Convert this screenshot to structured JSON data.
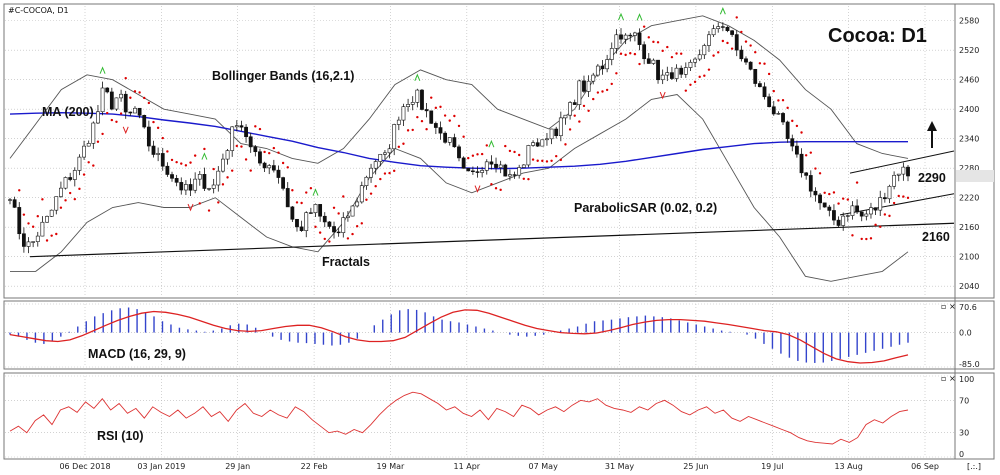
{
  "header": {
    "symbol": "#C-COCOA, D1",
    "title": "Cocoa: D1"
  },
  "annotations": {
    "bollinger": "Bollinger Bands (16,2.1)",
    "ma": "MA (200)",
    "fractals": "Fractals",
    "sar": "ParabolicSAR (0.02, 0.2)",
    "macd": "MACD (16, 29, 9)",
    "rsi": "RSI (10)"
  },
  "levels": {
    "resistance": "2290",
    "support": "2160"
  },
  "footer": {
    "scroll_glyph": "[.:.]"
  },
  "panel_controls": {
    "close_glyph": "×",
    "restore_glyph": "▫"
  },
  "colors": {
    "ma": "#1a1acc",
    "sar": "#dd0000",
    "fractal": "#33bb33",
    "fractal_down": "#dd2222",
    "macd_hist": "#3344cc",
    "macd_signal": "#dd2222",
    "rsi": "#dd3333",
    "candle": "#111111"
  },
  "chart_data": [
    {
      "type": "candlestick",
      "title": "Cocoa: D1",
      "y_ticks": [
        "2580",
        "2520",
        "2460",
        "2400",
        "2340",
        "2280",
        "2220",
        "2160",
        "2100",
        "2040"
      ],
      "ylim": [
        2020,
        2610
      ],
      "current_price": "2270",
      "x_ticks": [
        "06 Dec 2018",
        "03 Jan 2019",
        "29 Jan",
        "22 Feb",
        "19 Mar",
        "11 Apr",
        "07 May",
        "31 May",
        "25 Jun",
        "19 Jul",
        "13 Aug",
        "06 Sep"
      ],
      "n_bars": 195,
      "close_path": [
        2230,
        2160,
        2120,
        2130,
        2160,
        2180,
        2220,
        2250,
        2270,
        2300,
        2340,
        2380,
        2440,
        2410,
        2430,
        2380,
        2400,
        2360,
        2320,
        2300,
        2280,
        2260,
        2240,
        2230,
        2260,
        2250,
        2240,
        2290,
        2330,
        2380,
        2360,
        2310,
        2290,
        2290,
        2280,
        2240,
        2180,
        2150,
        2180,
        2200,
        2170,
        2160,
        2140,
        2180,
        2200,
        2240,
        2280,
        2300,
        2300,
        2350,
        2400,
        2420,
        2430,
        2400,
        2380,
        2350,
        2340,
        2310,
        2270,
        2260,
        2280,
        2300,
        2300,
        2280,
        2260,
        2270,
        2300,
        2340,
        2320,
        2360,
        2360,
        2380,
        2410,
        2450,
        2440,
        2480,
        2490,
        2530,
        2560,
        2540,
        2550,
        2520,
        2500,
        2470,
        2460,
        2480,
        2460,
        2480,
        2500,
        2540,
        2550,
        2580,
        2560,
        2520,
        2500,
        2470,
        2440,
        2420,
        2390,
        2360,
        2320,
        2290,
        2260,
        2230,
        2200,
        2180,
        2170,
        2190,
        2200,
        2180,
        2190,
        2200,
        2230,
        2260,
        2280,
        2270
      ],
      "bollinger": {
        "upper": [
          2300,
          2370,
          2440,
          2470,
          2460,
          2430,
          2400,
          2390,
          2380,
          2330,
          2320,
          2300,
          2290,
          2320,
          2380,
          2450,
          2480,
          2460,
          2450,
          2400,
          2380,
          2360,
          2400,
          2480,
          2540,
          2570,
          2580,
          2590,
          2570,
          2540,
          2500,
          2440,
          2400,
          2330,
          2310,
          2300
        ],
        "lower": [
          2070,
          2070,
          2110,
          2170,
          2200,
          2210,
          2200,
          2200,
          2220,
          2180,
          2140,
          2120,
          2110,
          2170,
          2260,
          2320,
          2300,
          2250,
          2230,
          2250,
          2270,
          2280,
          2320,
          2350,
          2380,
          2420,
          2430,
          2380,
          2290,
          2200,
          2140,
          2060,
          2050,
          2060,
          2070,
          2110
        ]
      },
      "ma200": [
        2390,
        2392,
        2393,
        2392,
        2390,
        2385,
        2378,
        2372,
        2365,
        2355,
        2345,
        2335,
        2322,
        2312,
        2300,
        2292,
        2285,
        2282,
        2280,
        2279,
        2280,
        2282,
        2284,
        2288,
        2294,
        2302,
        2310,
        2318,
        2324,
        2330,
        2333,
        2334,
        2334,
        2334,
        2334,
        2334
      ]
    },
    {
      "type": "bar",
      "title": "MACD (16, 29, 9)",
      "y_ticks": [
        "70.6",
        "0.0",
        "-85.0"
      ],
      "ylim": [
        -85,
        70.6
      ],
      "histogram": [
        -5,
        -10,
        -18,
        -25,
        -28,
        -20,
        -10,
        2,
        15,
        28,
        40,
        48,
        55,
        60,
        62,
        58,
        50,
        40,
        28,
        20,
        12,
        8,
        5,
        2,
        5,
        10,
        18,
        22,
        20,
        12,
        0,
        -10,
        -18,
        -22,
        -25,
        -26,
        -28,
        -30,
        -32,
        -30,
        -25,
        -15,
        0,
        18,
        32,
        45,
        55,
        58,
        56,
        50,
        40,
        32,
        28,
        25,
        20,
        15,
        10,
        5,
        0,
        -5,
        -8,
        -10,
        -8,
        -5,
        0,
        5,
        10,
        15,
        22,
        28,
        30,
        32,
        35,
        38,
        40,
        42,
        40,
        38,
        35,
        30,
        25,
        20,
        15,
        10,
        5,
        2,
        0,
        -5,
        -15,
        -28,
        -40,
        -52,
        -62,
        -70,
        -74,
        -75,
        -74,
        -70,
        -65,
        -60,
        -55,
        -50,
        -45,
        -40,
        -35,
        -30,
        -25
      ],
      "signal": [
        -5,
        -10,
        -15,
        -20,
        -22,
        -18,
        -8,
        5,
        18,
        30,
        40,
        48,
        52,
        50,
        45,
        38,
        28,
        18,
        10,
        5,
        3,
        5,
        10,
        15,
        18,
        18,
        12,
        2,
        -10,
        -18,
        -22,
        -22,
        -20,
        -12,
        5,
        22,
        38,
        50,
        56,
        55,
        48,
        38,
        28,
        18,
        10,
        5,
        0,
        -2,
        -3,
        -1,
        5,
        12,
        20,
        26,
        30,
        32,
        32,
        30,
        28,
        24,
        20,
        15,
        10,
        5,
        2,
        -5,
        -18,
        -35,
        -52,
        -65,
        -72,
        -75,
        -74,
        -70,
        -62,
        -55
      ]
    },
    {
      "type": "line",
      "title": "RSI (10)",
      "y_ticks": [
        "100",
        "70",
        "30",
        "0"
      ],
      "ylim": [
        0,
        100
      ],
      "values": [
        32,
        38,
        30,
        45,
        52,
        40,
        58,
        62,
        55,
        68,
        60,
        72,
        58,
        66,
        54,
        60,
        48,
        62,
        55,
        50,
        58,
        48,
        54,
        62,
        50,
        56,
        44,
        58,
        66,
        54,
        50,
        58,
        52,
        48,
        62,
        56,
        46,
        38,
        30,
        32,
        28,
        34,
        30,
        40,
        52,
        62,
        70,
        76,
        80,
        78,
        72,
        66,
        58,
        62,
        54,
        50,
        58,
        46,
        60,
        56,
        50,
        64,
        60,
        52,
        58,
        62,
        56,
        64,
        70,
        68,
        72,
        64,
        60,
        58,
        55,
        62,
        58,
        66,
        70,
        64,
        56,
        52,
        58,
        62,
        54,
        58,
        48,
        44,
        50,
        46,
        42,
        38,
        34,
        30,
        24,
        20,
        18,
        17,
        16,
        22,
        18,
        24,
        40,
        46,
        42,
        50,
        56,
        58
      ]
    }
  ]
}
